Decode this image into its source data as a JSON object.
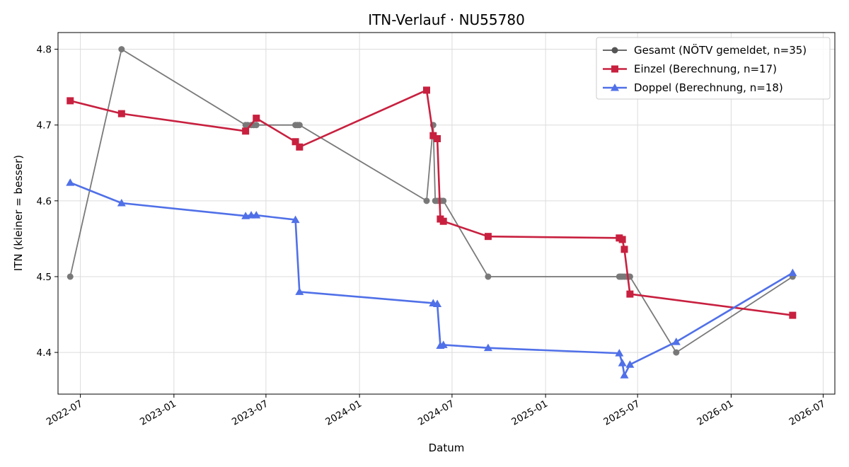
{
  "chart_data": {
    "type": "line",
    "title": "ITN-Verlauf · NU55780",
    "xlabel": "Datum",
    "ylabel": "ITN  (kleiner = besser)",
    "xlim": [
      "2022-05-18",
      "2026-07-24"
    ],
    "ylim": [
      4.345,
      4.822
    ],
    "x_ticks": [
      "2022-07",
      "2023-01",
      "2023-07",
      "2024-01",
      "2024-07",
      "2025-01",
      "2025-07",
      "2026-01",
      "2026-07"
    ],
    "y_ticks": [
      4.4,
      4.5,
      4.6,
      4.7,
      4.8
    ],
    "grid": true,
    "legend_position": "top-right",
    "series": [
      {
        "name": "Gesamt (NÖTV gemeldet, n=35)",
        "color": "#555555",
        "marker": "circle",
        "points": [
          [
            "2022-06-11",
            4.5
          ],
          [
            "2022-09-20",
            4.8
          ],
          [
            "2023-05-22",
            4.7
          ],
          [
            "2023-05-26",
            4.7
          ],
          [
            "2023-06-02",
            4.7
          ],
          [
            "2023-06-07",
            4.7
          ],
          [
            "2023-06-12",
            4.7
          ],
          [
            "2023-08-28",
            4.7
          ],
          [
            "2023-09-01",
            4.7
          ],
          [
            "2023-09-05",
            4.7
          ],
          [
            "2024-05-12",
            4.6
          ],
          [
            "2024-05-25",
            4.7
          ],
          [
            "2024-05-29",
            4.6
          ],
          [
            "2024-06-02",
            4.6
          ],
          [
            "2024-06-06",
            4.6
          ],
          [
            "2024-06-10",
            4.6
          ],
          [
            "2024-06-14",
            4.6
          ],
          [
            "2024-09-10",
            4.5
          ],
          [
            "2025-05-26",
            4.5
          ],
          [
            "2025-05-29",
            4.5
          ],
          [
            "2025-06-01",
            4.5
          ],
          [
            "2025-06-05",
            4.5
          ],
          [
            "2025-06-09",
            4.5
          ],
          [
            "2025-06-13",
            4.5
          ],
          [
            "2025-06-16",
            4.5
          ],
          [
            "2025-09-15",
            4.4
          ],
          [
            "2026-05-02",
            4.5
          ]
        ]
      },
      {
        "name": "Einzel (Berechnung, n=17)",
        "color": "#c8203f",
        "marker": "square",
        "points": [
          [
            "2022-06-11",
            4.732
          ],
          [
            "2022-09-20",
            4.715
          ],
          [
            "2023-05-22",
            4.692
          ],
          [
            "2023-06-12",
            4.709
          ],
          [
            "2023-08-28",
            4.678
          ],
          [
            "2023-09-05",
            4.671
          ],
          [
            "2024-05-12",
            4.746
          ],
          [
            "2024-05-25",
            4.686
          ],
          [
            "2024-06-02",
            4.682
          ],
          [
            "2024-06-08",
            4.576
          ],
          [
            "2024-06-14",
            4.573
          ],
          [
            "2024-09-10",
            4.553
          ],
          [
            "2025-05-26",
            4.551
          ],
          [
            "2025-06-01",
            4.549
          ],
          [
            "2025-06-05",
            4.536
          ],
          [
            "2025-06-16",
            4.477
          ],
          [
            "2026-05-02",
            4.449
          ]
        ]
      },
      {
        "name": "Doppel (Berechnung, n=18)",
        "color": "#5070e8",
        "marker": "triangle",
        "points": [
          [
            "2022-06-11",
            4.624
          ],
          [
            "2022-09-20",
            4.597
          ],
          [
            "2023-05-22",
            4.58
          ],
          [
            "2023-06-02",
            4.581
          ],
          [
            "2023-06-12",
            4.581
          ],
          [
            "2023-08-28",
            4.575
          ],
          [
            "2023-09-05",
            4.48
          ],
          [
            "2024-05-25",
            4.465
          ],
          [
            "2024-06-02",
            4.464
          ],
          [
            "2024-06-08",
            4.409
          ],
          [
            "2024-06-14",
            4.41
          ],
          [
            "2024-09-10",
            4.406
          ],
          [
            "2025-05-26",
            4.399
          ],
          [
            "2025-06-01",
            4.386
          ],
          [
            "2025-06-05",
            4.37
          ],
          [
            "2025-06-16",
            4.384
          ],
          [
            "2025-09-15",
            4.414
          ],
          [
            "2026-05-02",
            4.505
          ]
        ]
      }
    ]
  }
}
